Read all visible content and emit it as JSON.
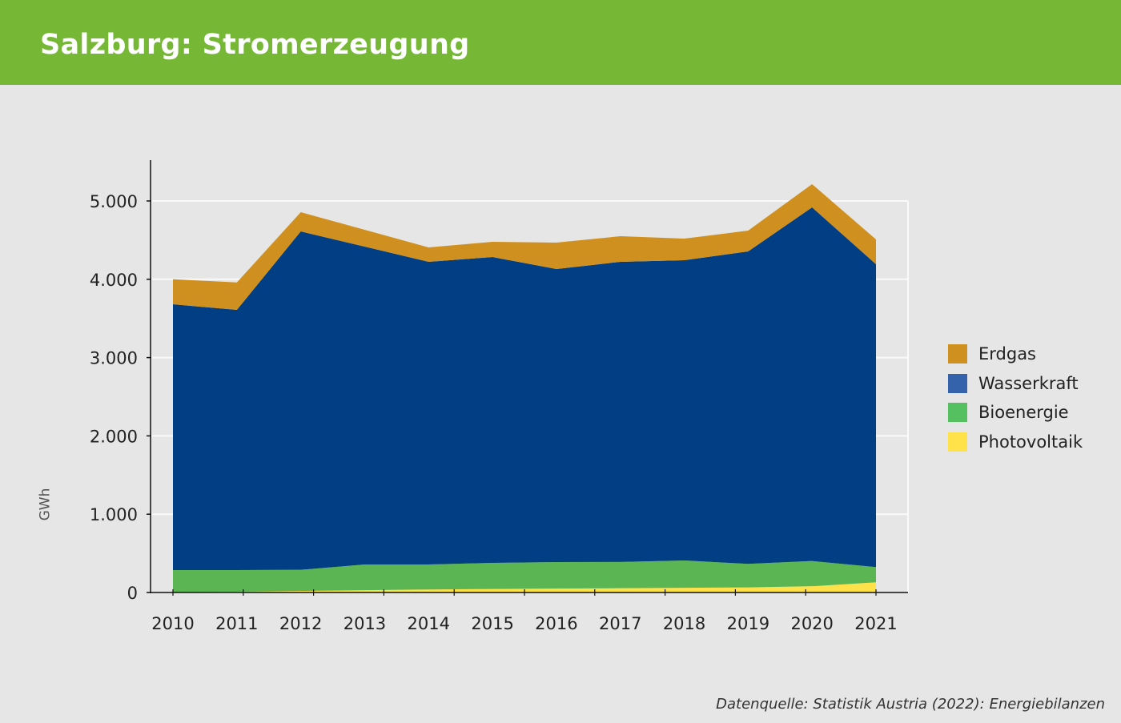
{
  "header": {
    "title": "Salzburg: Stromerzeugung"
  },
  "source": "Datenquelle: Statistik Austria (2022): Energiebilanzen",
  "chart_data": {
    "type": "area",
    "stacked": true,
    "title": "Salzburg: Stromerzeugung",
    "ylabel": "GWh",
    "xlabel": "",
    "ylim": [
      0,
      5500
    ],
    "yticks": [
      0,
      1000,
      2000,
      3000,
      4000,
      5000
    ],
    "ytick_labels": [
      "0",
      "1.000",
      "2.000",
      "3.000",
      "4.000",
      "5.000"
    ],
    "categories": [
      "2010",
      "2011",
      "2012",
      "2013",
      "2014",
      "2015",
      "2016",
      "2017",
      "2018",
      "2019",
      "2020",
      "2021"
    ],
    "grid": true,
    "legend_position": "right",
    "series": [
      {
        "name": "Photovoltaik",
        "color": "#ffe14a",
        "legend_color": "#ffe14a",
        "values": [
          5,
          10,
          20,
          30,
          38,
          45,
          50,
          55,
          60,
          65,
          80,
          130
        ]
      },
      {
        "name": "Bioenergie",
        "color": "#5ab552",
        "legend_color": "#55c060",
        "values": [
          281,
          276,
          270,
          328,
          320,
          333,
          338,
          335,
          349,
          300,
          322,
          195
        ]
      },
      {
        "name": "Wasserkraft",
        "color": "#023e84",
        "legend_color": "#3463ab",
        "values": [
          3395,
          3323,
          4321,
          4059,
          3865,
          3906,
          3743,
          3833,
          3834,
          3991,
          4516,
          3867
        ]
      },
      {
        "name": "Erdgas",
        "color": "#d09020",
        "legend_color": "#d09020",
        "values": [
          319,
          351,
          246,
          215,
          184,
          194,
          337,
          327,
          276,
          266,
          297,
          317
        ]
      }
    ]
  }
}
